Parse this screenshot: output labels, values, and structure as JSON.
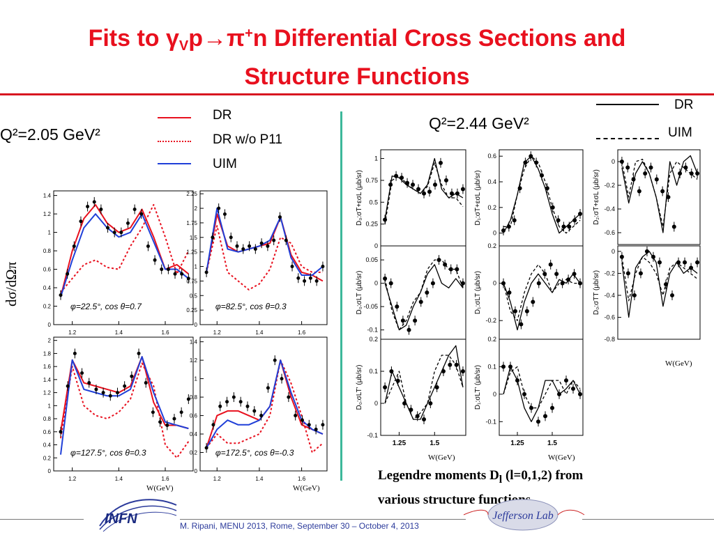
{
  "slide": {
    "title_part1": "Fits to γ",
    "title_sub": "V",
    "title_part2": "p→π",
    "title_sup": "+",
    "title_part3": "n Differential Cross Sections and",
    "title_line2": "Structure Functions",
    "left_q2": "Q²=2.05 GeV²",
    "right_q2": "Q²=2.44 GeV²",
    "left_ylabel": "dσ/dΩπ",
    "note_line1": "Legendre moments D",
    "note_sub": "l",
    "note_line1b": " (l=0,1,2) from",
    "note_line2": "various structure functions",
    "footer": "M. Ripani, MENU 2013, Rome, September 30 – October 4, 2013",
    "logo_left": "INFN",
    "logo_right": "Jefferson Lab"
  },
  "legend_left": [
    {
      "label": "DR",
      "color": "#e8101e",
      "style": "solid"
    },
    {
      "label": "DR w/o P11",
      "color": "#e8101e",
      "style": "dotted"
    },
    {
      "label": "UIM",
      "color": "#1f3fd8",
      "style": "solid"
    }
  ],
  "legend_right": [
    {
      "label": "DR",
      "style": "solid"
    },
    {
      "label": "UIM",
      "style": "dashed"
    }
  ],
  "xlabel": "W(GeV)",
  "chart_data": [
    {
      "id": "L1",
      "type": "line",
      "xlim": [
        1.12,
        1.72
      ],
      "ylim": [
        0,
        1.45
      ],
      "xticks": [
        1.2,
        1.4,
        1.6
      ],
      "yticks": [
        0,
        0.2,
        0.4,
        0.6,
        0.8,
        1,
        1.2,
        1.4
      ],
      "annotation": "φ=22.5°, cos θ=0.7",
      "x": [
        1.15,
        1.2,
        1.25,
        1.3,
        1.35,
        1.4,
        1.45,
        1.5,
        1.55,
        1.6,
        1.65,
        1.7
      ],
      "series": [
        {
          "name": "DR",
          "values": [
            0.3,
            0.8,
            1.15,
            1.3,
            1.1,
            1.0,
            1.05,
            1.25,
            0.95,
            0.6,
            0.65,
            0.55
          ]
        },
        {
          "name": "DR w/o P11",
          "values": [
            0.35,
            0.5,
            0.65,
            0.7,
            0.62,
            0.6,
            0.85,
            1.05,
            1.3,
            0.95,
            0.55,
            0.8
          ]
        },
        {
          "name": "UIM",
          "values": [
            0.3,
            0.7,
            1.05,
            1.2,
            1.05,
            0.95,
            1.0,
            1.2,
            0.9,
            0.6,
            0.6,
            0.5
          ]
        }
      ],
      "points": [
        0.32,
        0.55,
        0.85,
        1.12,
        1.28,
        1.33,
        1.25,
        1.05,
        1.0,
        1.0,
        1.1,
        1.25,
        1.2,
        0.85,
        0.7,
        0.6,
        0.6,
        0.55,
        0.55,
        0.5
      ]
    },
    {
      "id": "L2",
      "type": "line",
      "xlim": [
        1.12,
        1.72
      ],
      "ylim": [
        0,
        2.3
      ],
      "xticks": [
        1.2,
        1.4,
        1.6
      ],
      "yticks": [
        0,
        0.25,
        0.5,
        0.75,
        1,
        1.25,
        1.5,
        1.75,
        2,
        2.25
      ],
      "annotation": "φ=82.5°, cos θ=0.3",
      "x": [
        1.15,
        1.2,
        1.25,
        1.3,
        1.35,
        1.4,
        1.45,
        1.5,
        1.55,
        1.6,
        1.65,
        1.7
      ],
      "series": [
        {
          "name": "DR",
          "values": [
            0.9,
            1.9,
            1.35,
            1.25,
            1.3,
            1.35,
            1.4,
            1.85,
            1.2,
            0.9,
            0.85,
            0.75
          ]
        },
        {
          "name": "DR w/o P11",
          "values": [
            0.9,
            1.7,
            0.9,
            0.75,
            0.6,
            0.7,
            0.95,
            1.5,
            1.4,
            1.0,
            0.9,
            0.9
          ]
        },
        {
          "name": "UIM",
          "values": [
            0.9,
            2.0,
            1.3,
            1.25,
            1.3,
            1.35,
            1.45,
            1.85,
            1.15,
            0.85,
            0.85,
            1.0
          ]
        }
      ],
      "points": [
        0.9,
        1.5,
        2.0,
        1.9,
        1.5,
        1.35,
        1.3,
        1.35,
        1.3,
        1.4,
        1.35,
        1.45,
        1.85,
        1.45,
        1.0,
        0.8,
        0.75,
        0.8,
        0.75,
        1.0
      ]
    },
    {
      "id": "L3",
      "type": "line",
      "xlim": [
        1.12,
        1.72
      ],
      "ylim": [
        0,
        2.05
      ],
      "xticks": [
        1.2,
        1.4,
        1.6
      ],
      "yticks": [
        0,
        0.2,
        0.4,
        0.6,
        0.8,
        1,
        1.2,
        1.4,
        1.6,
        1.8,
        2
      ],
      "annotation": "φ=127.5°, cos θ=0.3",
      "x": [
        1.15,
        1.2,
        1.25,
        1.3,
        1.35,
        1.4,
        1.45,
        1.5,
        1.55,
        1.6,
        1.65,
        1.7
      ],
      "series": [
        {
          "name": "DR",
          "values": [
            0.6,
            1.7,
            1.35,
            1.3,
            1.25,
            1.2,
            1.3,
            1.75,
            1.05,
            0.7,
            0.7,
            0.65
          ]
        },
        {
          "name": "DR w/o P11",
          "values": [
            0.5,
            1.6,
            1.0,
            0.85,
            0.8,
            0.9,
            1.1,
            1.65,
            1.3,
            0.4,
            0.2,
            0.45
          ]
        },
        {
          "name": "UIM",
          "values": [
            0.25,
            1.7,
            1.25,
            1.2,
            1.15,
            1.15,
            1.25,
            1.75,
            1.2,
            0.75,
            0.7,
            0.65
          ]
        }
      ],
      "points": [
        0.6,
        1.3,
        1.8,
        1.5,
        1.35,
        1.25,
        1.2,
        1.15,
        1.2,
        1.3,
        1.45,
        1.8,
        1.35,
        0.9,
        0.75,
        0.7,
        0.8,
        0.9,
        1.1
      ]
    },
    {
      "id": "L4",
      "type": "line",
      "xlim": [
        1.12,
        1.72
      ],
      "ylim": [
        0,
        1.45
      ],
      "xticks": [
        1.2,
        1.4,
        1.6
      ],
      "yticks": [
        0,
        0.2,
        0.4,
        0.6,
        0.8,
        1,
        1.2,
        1.4
      ],
      "annotation": "φ=172.5°, cos θ=-0.3",
      "x": [
        1.15,
        1.2,
        1.25,
        1.3,
        1.35,
        1.4,
        1.45,
        1.5,
        1.55,
        1.6,
        1.65,
        1.7
      ],
      "series": [
        {
          "name": "DR",
          "values": [
            0.25,
            0.6,
            0.65,
            0.65,
            0.6,
            0.55,
            0.7,
            1.2,
            0.8,
            0.5,
            0.45,
            0.4
          ]
        },
        {
          "name": "DR w/o P11",
          "values": [
            0.25,
            0.4,
            0.3,
            0.3,
            0.35,
            0.4,
            0.6,
            1.2,
            0.95,
            0.6,
            0.2,
            0.3
          ]
        },
        {
          "name": "UIM",
          "values": [
            0.25,
            0.45,
            0.55,
            0.5,
            0.5,
            0.55,
            0.7,
            1.2,
            0.85,
            0.55,
            0.45,
            0.4
          ]
        }
      ],
      "points": [
        0.25,
        0.5,
        0.7,
        0.75,
        0.8,
        0.75,
        0.7,
        0.65,
        0.6,
        0.9,
        1.2,
        1.0,
        0.8,
        0.6,
        0.55,
        0.5,
        0.45,
        0.5
      ]
    },
    {
      "id": "R00",
      "type": "line",
      "ylabel": "D₀:σT+εσL (μb/sr)",
      "xlim": [
        1.12,
        1.72
      ],
      "ylim": [
        0,
        1.1
      ],
      "yticks": [
        0,
        0.25,
        0.5,
        0.75,
        1
      ],
      "x": [
        1.15,
        1.2,
        1.25,
        1.3,
        1.35,
        1.4,
        1.45,
        1.5,
        1.55,
        1.6,
        1.65,
        1.7
      ],
      "series": [
        {
          "name": "DR",
          "values": [
            0.3,
            0.8,
            0.78,
            0.7,
            0.65,
            0.6,
            0.7,
            1.0,
            0.65,
            0.55,
            0.6,
            0.55
          ]
        },
        {
          "name": "UIM",
          "values": [
            0.25,
            0.75,
            0.8,
            0.72,
            0.65,
            0.6,
            0.68,
            0.95,
            0.7,
            0.55,
            0.55,
            0.45
          ]
        }
      ],
      "points": [
        0.3,
        0.7,
        0.8,
        0.78,
        0.72,
        0.7,
        0.65,
        0.6,
        0.62,
        0.7,
        0.95,
        0.75,
        0.6,
        0.6,
        0.65
      ]
    },
    {
      "id": "R01",
      "type": "line",
      "ylabel": "D₁:σT+εσL (μb/sr)",
      "xlim": [
        1.12,
        1.72
      ],
      "ylim": [
        -0.1,
        0.65
      ],
      "yticks": [
        0,
        0.2,
        0.4,
        0.6
      ],
      "x": [
        1.15,
        1.2,
        1.25,
        1.3,
        1.35,
        1.4,
        1.45,
        1.5,
        1.55,
        1.6,
        1.65,
        1.7
      ],
      "series": [
        {
          "name": "DR",
          "values": [
            0.0,
            0.1,
            0.3,
            0.55,
            0.6,
            0.5,
            0.35,
            0.15,
            0.0,
            0.05,
            0.1,
            0.15
          ]
        },
        {
          "name": "UIM",
          "values": [
            0.05,
            0.05,
            0.3,
            0.5,
            0.6,
            0.55,
            0.4,
            0.2,
            0.05,
            0.0,
            0.05,
            0.1
          ]
        }
      ],
      "points": [
        0.02,
        0.05,
        0.1,
        0.35,
        0.55,
        0.6,
        0.55,
        0.45,
        0.35,
        0.2,
        0.1,
        0.05,
        0.05,
        0.1,
        0.15
      ]
    },
    {
      "id": "R02",
      "type": "line",
      "ylabel": "D₂:σT+εσL (μb/sr)",
      "xlim": [
        1.12,
        1.72
      ],
      "ylim": [
        -0.7,
        0.1
      ],
      "yticks": [
        0,
        -0.2,
        -0.4,
        -0.6
      ],
      "x": [
        1.15,
        1.2,
        1.25,
        1.3,
        1.35,
        1.4,
        1.45,
        1.5,
        1.55,
        1.6,
        1.65,
        1.7
      ],
      "series": [
        {
          "name": "DR",
          "values": [
            -0.05,
            -0.35,
            -0.1,
            0.0,
            -0.1,
            -0.3,
            -0.6,
            0.0,
            -0.2,
            0.0,
            0.05,
            -0.1
          ]
        },
        {
          "name": "UIM",
          "values": [
            0.0,
            -0.3,
            0.0,
            0.02,
            -0.1,
            -0.3,
            -0.55,
            -0.1,
            0.0,
            -0.05,
            -0.1,
            -0.15
          ]
        }
      ],
      "points": [
        0.0,
        -0.05,
        -0.15,
        -0.25,
        -0.1,
        -0.05,
        -0.15,
        -0.25,
        -0.3,
        -0.55,
        -0.1,
        -0.05,
        -0.1,
        -0.1
      ]
    },
    {
      "id": "R10",
      "type": "line",
      "ylabel": "D₀:σLT (μb/sr)",
      "xlim": [
        1.12,
        1.72
      ],
      "ylim": [
        -0.12,
        0.08
      ],
      "yticks": [
        0.05,
        0,
        -0.05,
        -0.1
      ],
      "x": [
        1.15,
        1.2,
        1.25,
        1.3,
        1.35,
        1.4,
        1.45,
        1.5,
        1.55,
        1.6,
        1.65,
        1.7
      ],
      "series": [
        {
          "name": "DR",
          "values": [
            0.0,
            -0.05,
            -0.1,
            -0.09,
            -0.05,
            -0.02,
            0.02,
            0.04,
            0.0,
            -0.01,
            0.01,
            -0.01
          ]
        },
        {
          "name": "UIM",
          "values": [
            0.01,
            -0.06,
            -0.1,
            -0.08,
            -0.04,
            -0.02,
            0.03,
            0.05,
            0.05,
            0.03,
            0.03,
            -0.01
          ]
        }
      ],
      "points": [
        0.01,
        0.0,
        -0.05,
        -0.08,
        -0.1,
        -0.08,
        -0.04,
        -0.02,
        0.0,
        0.05,
        0.04,
        0.03,
        0.03,
        0.0
      ]
    },
    {
      "id": "R11",
      "type": "line",
      "ylabel": "D₁:σLT (μb/sr)",
      "xlim": [
        1.12,
        1.72
      ],
      "ylim": [
        -0.3,
        0.2
      ],
      "yticks": [
        0.2,
        0,
        -0.2
      ],
      "x": [
        1.15,
        1.2,
        1.25,
        1.3,
        1.35,
        1.4,
        1.45,
        1.5,
        1.55,
        1.6,
        1.65,
        1.7
      ],
      "series": [
        {
          "name": "DR",
          "values": [
            0.0,
            -0.1,
            -0.25,
            -0.1,
            0.0,
            0.05,
            0.0,
            -0.05,
            0.02,
            0.0,
            0.05,
            0.0
          ]
        },
        {
          "name": "UIM",
          "values": [
            0.0,
            -0.15,
            -0.2,
            -0.05,
            0.05,
            0.1,
            0.05,
            -0.05,
            0.0,
            0.02,
            0.0,
            0.0
          ]
        }
      ],
      "points": [
        0.0,
        -0.05,
        -0.15,
        -0.22,
        -0.15,
        -0.1,
        0.0,
        0.05,
        0.1,
        0.05,
        0.0,
        0.02,
        0.05,
        0.0
      ]
    },
    {
      "id": "R12",
      "type": "line",
      "ylabel": "D₀:σTT (μb/sr)",
      "xlim": [
        1.12,
        1.72
      ],
      "ylim": [
        -0.8,
        0.05
      ],
      "yticks": [
        0,
        -0.2,
        -0.4,
        -0.6,
        -0.8
      ],
      "x": [
        1.15,
        1.2,
        1.25,
        1.3,
        1.35,
        1.4,
        1.45,
        1.5,
        1.55,
        1.6,
        1.65,
        1.7
      ],
      "series": [
        {
          "name": "DR",
          "values": [
            -0.1,
            -0.6,
            -0.15,
            -0.05,
            0.0,
            -0.1,
            -0.5,
            -0.2,
            -0.1,
            -0.2,
            -0.15,
            -0.2
          ]
        },
        {
          "name": "UIM",
          "values": [
            -0.05,
            -0.45,
            -0.2,
            -0.05,
            -0.1,
            -0.2,
            -0.4,
            -0.15,
            -0.1,
            -0.15,
            -0.2,
            -0.25
          ]
        }
      ],
      "points": [
        -0.05,
        -0.2,
        -0.4,
        -0.2,
        0.0,
        -0.05,
        -0.1,
        -0.3,
        -0.4,
        -0.1,
        -0.1,
        -0.15,
        -0.1
      ]
    },
    {
      "id": "R20",
      "type": "line",
      "ylabel": "D₀:σLT' (μb/sr)",
      "xlim": [
        1.12,
        1.72
      ],
      "ylim": [
        -0.1,
        0.2
      ],
      "yticks": [
        0.2,
        0.1,
        0,
        -0.1
      ],
      "xticks": [
        1.25,
        1.5
      ],
      "x": [
        1.15,
        1.2,
        1.25,
        1.3,
        1.35,
        1.4,
        1.45,
        1.5,
        1.55,
        1.6,
        1.65,
        1.7
      ],
      "series": [
        {
          "name": "DR",
          "values": [
            0.0,
            0.1,
            0.05,
            0.0,
            -0.05,
            -0.05,
            0.0,
            0.05,
            0.1,
            0.15,
            0.18,
            0.05
          ]
        },
        {
          "name": "UIM",
          "values": [
            0.0,
            0.05,
            0.1,
            0.0,
            -0.05,
            -0.03,
            0.0,
            0.1,
            0.15,
            0.15,
            0.12,
            0.05
          ]
        }
      ],
      "points": [
        0.05,
        0.1,
        0.07,
        0.0,
        -0.02,
        -0.04,
        -0.05,
        0.0,
        0.05,
        0.1,
        0.12,
        0.12,
        0.1
      ]
    },
    {
      "id": "R21",
      "type": "line",
      "ylabel": "D₁:σLT' (μb/sr)",
      "xlim": [
        1.12,
        1.72
      ],
      "ylim": [
        -0.15,
        0.2
      ],
      "yticks": [
        0.2,
        0.1,
        0,
        -0.1
      ],
      "xticks": [
        1.25,
        1.5
      ],
      "x": [
        1.15,
        1.2,
        1.25,
        1.3,
        1.35,
        1.4,
        1.45,
        1.5,
        1.55,
        1.6,
        1.65,
        1.7
      ],
      "series": [
        {
          "name": "DR",
          "values": [
            0.0,
            0.1,
            0.05,
            -0.05,
            -0.1,
            -0.05,
            0.05,
            0.05,
            0.0,
            0.02,
            0.05,
            0.0
          ]
        },
        {
          "name": "UIM",
          "values": [
            0.0,
            0.08,
            0.1,
            0.0,
            -0.05,
            -0.05,
            0.0,
            0.05,
            0.05,
            0.0,
            0.05,
            0.02
          ]
        }
      ],
      "points": [
        0.1,
        0.1,
        0.05,
        0.0,
        -0.05,
        -0.1,
        -0.08,
        -0.05,
        0.0,
        0.05,
        0.02,
        0.0
      ]
    }
  ]
}
